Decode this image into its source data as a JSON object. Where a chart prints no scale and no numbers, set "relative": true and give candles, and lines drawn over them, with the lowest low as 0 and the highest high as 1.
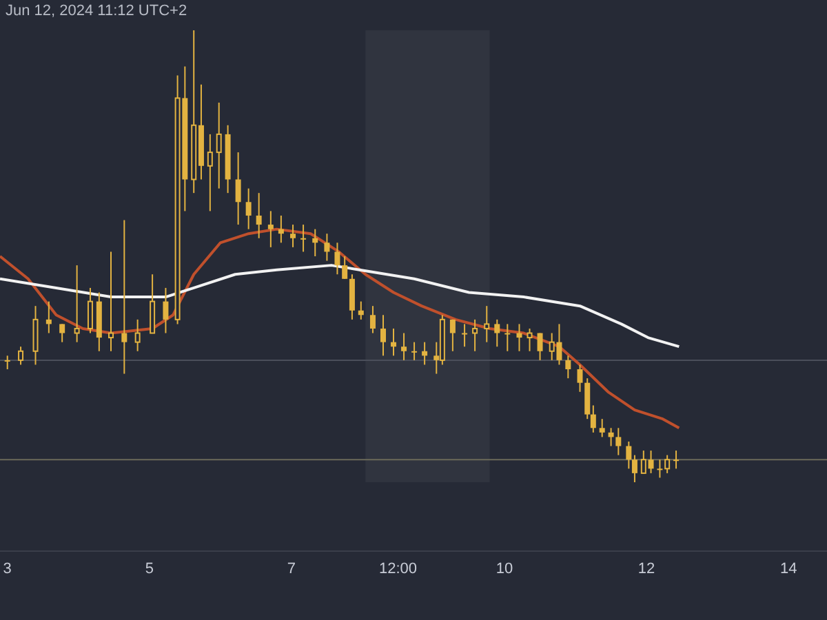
{
  "chart_data": {
    "type": "candlestick",
    "relative": true,
    "color": "#e3b341",
    "annotations": [
      "Jun 12, 2024 11:12 UTC+2"
    ],
    "x": [
      "2024-06-03T00:00",
      "2024-06-03T04:30",
      "2024-06-03T09:30",
      "2024-06-03T14:00",
      "2024-06-03T18:30",
      "2024-06-03T23:30",
      "2024-06-04T04:00",
      "2024-06-04T07:00",
      "2024-06-04T11:00",
      "2024-06-04T15:30",
      "2024-06-04T20:00",
      "2024-06-05T01:00",
      "2024-06-05T05:30",
      "2024-06-05T09:30",
      "2024-06-05T12:00",
      "2024-06-05T15:00",
      "2024-06-05T17:30",
      "2024-06-05T20:30",
      "2024-06-05T23:30",
      "2024-06-06T02:30",
      "2024-06-06T06:00",
      "2024-06-06T09:30",
      "2024-06-06T13:00",
      "2024-06-06T17:00",
      "2024-06-06T20:30",
      "2024-06-07T00:30",
      "2024-06-07T04:00",
      "2024-06-07T08:00",
      "2024-06-07T12:00",
      "2024-06-07T15:30",
      "2024-06-07T18:00",
      "2024-06-07T20:30",
      "2024-06-07T23:30",
      "2024-06-08T03:30",
      "2024-06-08T07:00",
      "2024-06-08T10:30",
      "2024-06-08T14:00",
      "2024-06-08T17:30",
      "2024-06-08T21:00",
      "2024-06-09T01:00",
      "2024-06-09T03:00",
      "2024-06-09T06:30",
      "2024-06-09T10:30",
      "2024-06-09T14:00",
      "2024-06-09T18:00",
      "2024-06-09T21:30",
      "2024-06-10T01:00",
      "2024-06-10T05:00",
      "2024-06-10T08:30",
      "2024-06-10T12:00",
      "2024-06-10T16:00",
      "2024-06-10T18:30",
      "2024-06-10T21:30",
      "2024-06-11T01:30",
      "2024-06-11T04:00",
      "2024-06-11T06:00",
      "2024-06-11T09:00",
      "2024-06-11T12:00",
      "2024-06-11T14:30",
      "2024-06-11T18:00",
      "2024-06-11T20:00",
      "2024-06-11T23:00",
      "2024-06-12T01:30",
      "2024-06-12T04:30",
      "2024-06-12T07:00",
      "2024-06-12T10:00"
    ],
    "ohlc": [
      [
        0.27,
        0.28,
        0.25,
        0.27
      ],
      [
        0.27,
        0.3,
        0.26,
        0.29
      ],
      [
        0.29,
        0.39,
        0.26,
        0.36
      ],
      [
        0.36,
        0.4,
        0.33,
        0.35
      ],
      [
        0.35,
        0.35,
        0.31,
        0.33
      ],
      [
        0.33,
        0.48,
        0.31,
        0.34
      ],
      [
        0.34,
        0.43,
        0.33,
        0.4
      ],
      [
        0.4,
        0.42,
        0.29,
        0.32
      ],
      [
        0.32,
        0.51,
        0.29,
        0.33
      ],
      [
        0.33,
        0.58,
        0.24,
        0.31
      ],
      [
        0.31,
        0.36,
        0.29,
        0.33
      ],
      [
        0.33,
        0.46,
        0.33,
        0.4
      ],
      [
        0.4,
        0.43,
        0.33,
        0.36
      ],
      [
        0.36,
        0.9,
        0.35,
        0.85
      ],
      [
        0.85,
        0.92,
        0.6,
        0.67
      ],
      [
        0.67,
        1.0,
        0.64,
        0.79
      ],
      [
        0.79,
        0.88,
        0.67,
        0.7
      ],
      [
        0.7,
        0.77,
        0.6,
        0.73
      ],
      [
        0.73,
        0.84,
        0.65,
        0.77
      ],
      [
        0.77,
        0.79,
        0.64,
        0.67
      ],
      [
        0.67,
        0.73,
        0.57,
        0.62
      ],
      [
        0.62,
        0.65,
        0.56,
        0.59
      ],
      [
        0.59,
        0.64,
        0.54,
        0.57
      ],
      [
        0.57,
        0.6,
        0.52,
        0.56
      ],
      [
        0.56,
        0.59,
        0.53,
        0.55
      ],
      [
        0.55,
        0.57,
        0.52,
        0.54
      ],
      [
        0.54,
        0.57,
        0.51,
        0.54
      ],
      [
        0.54,
        0.56,
        0.5,
        0.53
      ],
      [
        0.53,
        0.55,
        0.49,
        0.51
      ],
      [
        0.51,
        0.53,
        0.46,
        0.48
      ],
      [
        0.48,
        0.5,
        0.45,
        0.45
      ],
      [
        0.45,
        0.46,
        0.36,
        0.38
      ],
      [
        0.38,
        0.4,
        0.36,
        0.37
      ],
      [
        0.37,
        0.39,
        0.33,
        0.34
      ],
      [
        0.34,
        0.37,
        0.28,
        0.31
      ],
      [
        0.31,
        0.34,
        0.28,
        0.3
      ],
      [
        0.3,
        0.33,
        0.27,
        0.29
      ],
      [
        0.29,
        0.31,
        0.27,
        0.29
      ],
      [
        0.29,
        0.31,
        0.26,
        0.28
      ],
      [
        0.28,
        0.31,
        0.24,
        0.27
      ],
      [
        0.27,
        0.37,
        0.26,
        0.36
      ],
      [
        0.36,
        0.36,
        0.29,
        0.33
      ],
      [
        0.33,
        0.35,
        0.3,
        0.33
      ],
      [
        0.33,
        0.36,
        0.29,
        0.34
      ],
      [
        0.34,
        0.39,
        0.31,
        0.35
      ],
      [
        0.35,
        0.36,
        0.3,
        0.33
      ],
      [
        0.33,
        0.35,
        0.29,
        0.33
      ],
      [
        0.33,
        0.35,
        0.29,
        0.32
      ],
      [
        0.32,
        0.34,
        0.29,
        0.33
      ],
      [
        0.33,
        0.33,
        0.27,
        0.29
      ],
      [
        0.29,
        0.33,
        0.27,
        0.31
      ],
      [
        0.31,
        0.35,
        0.26,
        0.27
      ],
      [
        0.27,
        0.28,
        0.23,
        0.25
      ],
      [
        0.25,
        0.26,
        0.2,
        0.22
      ],
      [
        0.22,
        0.23,
        0.14,
        0.15
      ],
      [
        0.15,
        0.17,
        0.11,
        0.12
      ],
      [
        0.12,
        0.14,
        0.1,
        0.11
      ],
      [
        0.11,
        0.12,
        0.08,
        0.1
      ],
      [
        0.1,
        0.12,
        0.06,
        0.08
      ],
      [
        0.08,
        0.09,
        0.03,
        0.05
      ],
      [
        0.05,
        0.06,
        0.0,
        0.02
      ],
      [
        0.02,
        0.07,
        0.02,
        0.05
      ],
      [
        0.05,
        0.07,
        0.02,
        0.03
      ],
      [
        0.03,
        0.05,
        0.01,
        0.03
      ],
      [
        0.03,
        0.06,
        0.02,
        0.05
      ],
      [
        0.05,
        0.07,
        0.03,
        0.05
      ]
    ],
    "series": [
      {
        "type": "line",
        "color": "#c0502c",
        "x": [
          "2024-06-02T21:30",
          "2024-06-03T07:00",
          "2024-06-03T16:30",
          "2024-06-04T01:30",
          "2024-06-04T11:00",
          "2024-06-05T01:00",
          "2024-06-05T08:00",
          "2024-06-05T15:00",
          "2024-06-06T00:00",
          "2024-06-06T09:30",
          "2024-06-06T19:00",
          "2024-06-07T06:30",
          "2024-06-07T16:00",
          "2024-06-08T01:00",
          "2024-06-08T10:30",
          "2024-06-08T20:00",
          "2024-06-09T07:30",
          "2024-06-09T19:00",
          "2024-06-10T06:30",
          "2024-06-10T18:30",
          "2024-06-11T01:30",
          "2024-06-11T11:00",
          "2024-06-11T20:00",
          "2024-06-12T05:30",
          "2024-06-12T11:00"
        ],
        "values": [
          0.5,
          0.45,
          0.37,
          0.34,
          0.33,
          0.34,
          0.37,
          0.46,
          0.53,
          0.55,
          0.56,
          0.55,
          0.51,
          0.46,
          0.42,
          0.39,
          0.36,
          0.34,
          0.33,
          0.3,
          0.26,
          0.2,
          0.16,
          0.14,
          0.12
        ]
      },
      {
        "type": "line",
        "color": "#f2f2f2",
        "x": [
          "2024-06-02T21:30",
          "2024-06-03T16:30",
          "2024-06-04T11:00",
          "2024-06-05T05:30",
          "2024-06-05T15:00",
          "2024-06-06T05:00",
          "2024-06-06T19:00",
          "2024-06-07T13:30",
          "2024-06-07T23:00",
          "2024-06-08T17:30",
          "2024-06-09T12:00",
          "2024-06-10T06:30",
          "2024-06-11T01:30",
          "2024-06-11T15:30",
          "2024-06-12T00:30",
          "2024-06-12T11:00"
        ],
        "values": [
          0.45,
          0.43,
          0.41,
          0.41,
          0.43,
          0.46,
          0.47,
          0.48,
          0.47,
          0.45,
          0.42,
          0.41,
          0.39,
          0.35,
          0.32,
          0.3
        ]
      }
    ],
    "xlim": [
      "2024-06-02T21:30",
      "2024-06-14T13:00"
    ],
    "xticks": [
      {
        "value": "2024-06-03",
        "label": "3"
      },
      {
        "value": "2024-06-05",
        "label": "5"
      },
      {
        "value": "2024-06-07",
        "label": "7"
      },
      {
        "value": "2024-06-08T12:00",
        "label": "12:00"
      },
      {
        "value": "2024-06-10",
        "label": "10"
      },
      {
        "value": "2024-06-12",
        "label": "12"
      },
      {
        "value": "2024-06-14",
        "label": "14"
      }
    ],
    "ref_lines": [
      {
        "axis": "y",
        "value": 0.27,
        "color": "#4a4e5a"
      },
      {
        "axis": "y",
        "value": 0.05,
        "color": "#6b6a5a"
      }
    ],
    "bands": [
      {
        "axis": "x",
        "from": "2024-06-08T01:00",
        "to": "2024-06-09T19:00",
        "color": "#30343f"
      }
    ],
    "marker": "none"
  }
}
